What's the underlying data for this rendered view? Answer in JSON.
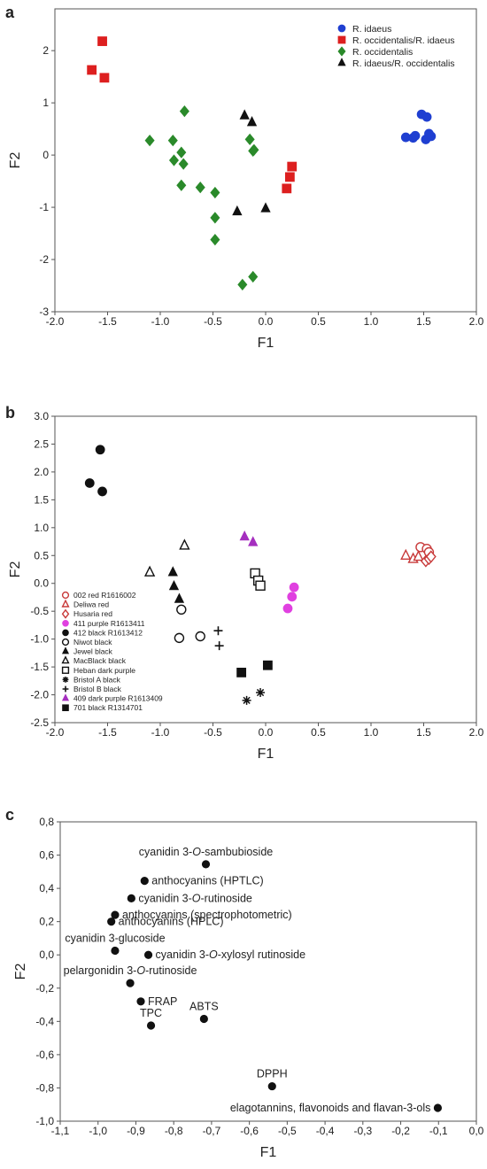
{
  "colors": {
    "blue": "#1f3fd1",
    "red": "#dd1f1f",
    "green": "#2a8a2a",
    "black": "#111111",
    "magenta": "#e040e0",
    "purple": "#a52fbf",
    "darkred": "#c83a3a"
  },
  "chart_data": [
    {
      "type": "scatter",
      "panel_label": "a",
      "xlabel": "F1",
      "ylabel": "F2",
      "xlim": [
        -2.0,
        2.0
      ],
      "ylim": [
        -3,
        2.8
      ],
      "xticks": [
        -2.0,
        -1.5,
        -1.0,
        -0.5,
        0.0,
        0.5,
        1.0,
        1.5,
        2.0
      ],
      "xtick_labels": [
        "-2.0",
        "-1.5",
        "-1.0",
        "-0.5",
        "0.0",
        "0.5",
        "1.0",
        "1.5",
        "2.0"
      ],
      "yticks": [
        -3,
        -2,
        -1,
        0,
        1,
        2
      ],
      "ytick_labels": [
        "-3",
        "-2",
        "-1",
        "0",
        "1",
        "2"
      ],
      "grid": false,
      "legend_position": "top-right",
      "series": [
        {
          "name": "R. idaeus",
          "marker": "circle",
          "color": "#1f3fd1",
          "points": [
            [
              1.33,
              0.34
            ],
            [
              1.4,
              0.33
            ],
            [
              1.42,
              0.37
            ],
            [
              1.48,
              0.78
            ],
            [
              1.53,
              0.73
            ],
            [
              1.52,
              0.3
            ],
            [
              1.57,
              0.36
            ],
            [
              1.55,
              0.41
            ]
          ]
        },
        {
          "name": "R. occidentalis/R. idaeus",
          "marker": "square",
          "color": "#dd1f1f",
          "points": [
            [
              -1.65,
              1.63
            ],
            [
              -1.55,
              2.18
            ],
            [
              -1.53,
              1.48
            ],
            [
              0.25,
              -0.22
            ],
            [
              0.23,
              -0.42
            ],
            [
              0.2,
              -0.64
            ]
          ]
        },
        {
          "name": "R. occidentalis",
          "marker": "diamond",
          "color": "#2a8a2a",
          "points": [
            [
              -1.1,
              0.28
            ],
            [
              -0.88,
              0.28
            ],
            [
              -0.77,
              0.84
            ],
            [
              -0.87,
              -0.1
            ],
            [
              -0.8,
              0.05
            ],
            [
              -0.78,
              -0.17
            ],
            [
              -0.8,
              -0.58
            ],
            [
              -0.62,
              -0.62
            ],
            [
              -0.48,
              -0.72
            ],
            [
              -0.48,
              -1.2
            ],
            [
              -0.48,
              -1.62
            ],
            [
              -0.22,
              -2.48
            ],
            [
              -0.12,
              -2.33
            ],
            [
              -0.15,
              0.3
            ],
            [
              -0.12,
              0.08
            ],
            [
              -0.11,
              0.1
            ]
          ]
        },
        {
          "name": "R. idaeus/R. occidentalis",
          "marker": "triangle",
          "color": "#111111",
          "points": [
            [
              -0.2,
              0.76
            ],
            [
              -0.13,
              0.63
            ],
            [
              -0.27,
              -1.08
            ],
            [
              0.0,
              -1.02
            ]
          ]
        }
      ]
    },
    {
      "type": "scatter",
      "panel_label": "b",
      "xlabel": "F1",
      "ylabel": "F2",
      "xlim": [
        -2.0,
        2.0
      ],
      "ylim": [
        -2.5,
        3.0
      ],
      "xticks": [
        -2.0,
        -1.5,
        -1.0,
        -0.5,
        0.0,
        0.5,
        1.0,
        1.5,
        2.0
      ],
      "xtick_labels": [
        "-2.0",
        "-1.5",
        "-1.0",
        "-0.5",
        "0.0",
        "0.5",
        "1.0",
        "1.5",
        "2.0"
      ],
      "yticks": [
        -2.5,
        -2.0,
        -1.5,
        -1.0,
        -0.5,
        0.0,
        0.5,
        1.0,
        1.5,
        2.0,
        2.5,
        3.0
      ],
      "ytick_labels": [
        "-2.5",
        "-2.0",
        "-1.5",
        "-1.0",
        "-0.5",
        "0.0",
        "0.5",
        "1.0",
        "1.5",
        "2.0",
        "2.5",
        "3.0"
      ],
      "grid": false,
      "legend_position": "bottom-left",
      "series": [
        {
          "name": "002 red R1616002",
          "marker": "circle-open",
          "color": "#c83a3a",
          "points": [
            [
              1.47,
              0.65
            ],
            [
              1.53,
              0.62
            ],
            [
              1.55,
              0.56
            ]
          ]
        },
        {
          "name": "Deliwa red",
          "marker": "triangle-open",
          "color": "#c83a3a",
          "points": [
            [
              1.33,
              0.5
            ],
            [
              1.4,
              0.44
            ],
            [
              1.45,
              0.48
            ]
          ]
        },
        {
          "name": "Husaria red",
          "marker": "diamond-open",
          "color": "#c83a3a",
          "points": [
            [
              1.52,
              0.4
            ],
            [
              1.55,
              0.44
            ],
            [
              1.57,
              0.48
            ]
          ]
        },
        {
          "name": "411 purple R1613411",
          "marker": "circle",
          "color": "#e040e0",
          "points": [
            [
              0.27,
              -0.07
            ],
            [
              0.25,
              -0.24
            ],
            [
              0.21,
              -0.45
            ]
          ]
        },
        {
          "name": "412 black R1613412",
          "marker": "circle",
          "color": "#111111",
          "points": [
            [
              -1.57,
              2.4
            ],
            [
              -1.67,
              1.8
            ],
            [
              -1.55,
              1.65
            ]
          ]
        },
        {
          "name": "Niwot black",
          "marker": "circle-open",
          "color": "#111111",
          "points": [
            [
              -0.8,
              -0.47
            ],
            [
              -0.82,
              -0.98
            ],
            [
              -0.62,
              -0.95
            ]
          ]
        },
        {
          "name": "Jewel black",
          "marker": "triangle",
          "color": "#111111",
          "points": [
            [
              -0.88,
              0.2
            ],
            [
              -0.87,
              -0.05
            ],
            [
              -0.82,
              -0.28
            ]
          ]
        },
        {
          "name": "MacBlack black",
          "marker": "triangle-open",
          "color": "#111111",
          "points": [
            [
              -1.1,
              0.2
            ],
            [
              -0.77,
              0.68
            ]
          ]
        },
        {
          "name": "Heban dark purple",
          "marker": "square-open",
          "color": "#111111",
          "points": [
            [
              -0.1,
              0.18
            ],
            [
              -0.07,
              0.05
            ],
            [
              -0.05,
              -0.04
            ]
          ]
        },
        {
          "name": "Bristol A black",
          "marker": "asterisk",
          "color": "#111111",
          "points": [
            [
              -0.18,
              -2.1
            ],
            [
              -0.05,
              -1.96
            ]
          ]
        },
        {
          "name": "Bristol B black",
          "marker": "plus",
          "color": "#111111",
          "points": [
            [
              -0.45,
              -0.85
            ],
            [
              -0.44,
              -1.12
            ]
          ]
        },
        {
          "name": "409 dark purple R1613409",
          "marker": "triangle",
          "color": "#a52fbf",
          "points": [
            [
              -0.2,
              0.84
            ],
            [
              -0.12,
              0.74
            ]
          ]
        },
        {
          "name": "701 black R1314701",
          "marker": "square",
          "color": "#111111",
          "points": [
            [
              -0.23,
              -1.6
            ],
            [
              0.02,
              -1.47
            ]
          ]
        }
      ]
    },
    {
      "type": "scatter",
      "panel_label": "c",
      "xlabel": "F1",
      "ylabel": "F2",
      "xlim": [
        -1.1,
        0.0
      ],
      "ylim": [
        -1.0,
        0.8
      ],
      "xticks": [
        -1.1,
        -1.0,
        -0.9,
        -0.8,
        -0.7,
        -0.6,
        -0.5,
        -0.4,
        -0.3,
        -0.2,
        -0.1,
        0.0
      ],
      "xtick_labels": [
        "-1,1",
        "-1,0",
        "-0,9",
        "-0,8",
        "-0,7",
        "-0,6",
        "-0,5",
        "-0,4",
        "-0,3",
        "-0,2",
        "-0,1",
        "0,0"
      ],
      "yticks": [
        -1.0,
        -0.8,
        -0.6,
        -0.4,
        -0.2,
        0.0,
        0.2,
        0.4,
        0.6,
        0.8
      ],
      "ytick_labels": [
        "-1,0",
        "-0,8",
        "-0,6",
        "-0,4",
        "-0,2",
        "0,0",
        "0,2",
        "0,4",
        "0,6",
        "0,8"
      ],
      "grid": false,
      "points": [
        {
          "x": -0.715,
          "y": 0.545,
          "label": "cyanidin 3-O-sambubioside",
          "anchor": "above",
          "rich": [
            [
              "cyanidin 3-",
              false
            ],
            [
              "O",
              true
            ],
            [
              "-sambubioside",
              false
            ]
          ]
        },
        {
          "x": -0.877,
          "y": 0.445,
          "label": "anthocyanins (HPTLC)",
          "anchor": "right",
          "rich": [
            [
              "anthocyanins (HPTLC)",
              false
            ]
          ]
        },
        {
          "x": -0.912,
          "y": 0.34,
          "label": "cyanidin 3-O-rutinoside",
          "anchor": "right",
          "rich": [
            [
              "cyanidin 3-",
              false
            ],
            [
              "O",
              true
            ],
            [
              "-rutinoside",
              false
            ]
          ]
        },
        {
          "x": -0.955,
          "y": 0.24,
          "label": "anthocyanins (spectrophotometric)",
          "anchor": "right",
          "rich": [
            [
              "anthocyanins (spectrophotometric)",
              false
            ]
          ]
        },
        {
          "x": -0.965,
          "y": 0.2,
          "label": "anthocyanins (HPLC)",
          "anchor": "right",
          "rich": [
            [
              "anthocyanins (HPLC)",
              false
            ]
          ]
        },
        {
          "x": -0.955,
          "y": 0.025,
          "label": "cyanidin 3-glucoside",
          "anchor": "above",
          "rich": [
            [
              "cyanidin 3-glucoside",
              false
            ]
          ]
        },
        {
          "x": -0.867,
          "y": 0.0,
          "label": "cyanidin 3-O-xylosyl rutinoside",
          "anchor": "right",
          "rich": [
            [
              "cyanidin 3-",
              false
            ],
            [
              "O",
              true
            ],
            [
              "-xylosyl rutinoside",
              false
            ]
          ]
        },
        {
          "x": -0.915,
          "y": -0.17,
          "label": "pelargonidin 3-O-rutinoside",
          "anchor": "above",
          "rich": [
            [
              "pelargonidin 3-",
              false
            ],
            [
              "O",
              true
            ],
            [
              "-rutinoside",
              false
            ]
          ]
        },
        {
          "x": -0.887,
          "y": -0.28,
          "label": "FRAP",
          "anchor": "right",
          "rich": [
            [
              "FRAP",
              false
            ]
          ]
        },
        {
          "x": -0.86,
          "y": -0.425,
          "label": "TPC",
          "anchor": "above",
          "rich": [
            [
              "TPC",
              false
            ]
          ]
        },
        {
          "x": -0.72,
          "y": -0.385,
          "label": "ABTS",
          "anchor": "above",
          "rich": [
            [
              "ABTS",
              false
            ]
          ]
        },
        {
          "x": -0.54,
          "y": -0.79,
          "label": "DPPH",
          "anchor": "above",
          "rich": [
            [
              "DPPH",
              false
            ]
          ]
        },
        {
          "x": -0.102,
          "y": -0.92,
          "label": "elagotannins, flavonoids and flavan-3-ols",
          "anchor": "left",
          "rich": [
            [
              "elagotannins, flavonoids and flavan-3-ols",
              false
            ]
          ]
        }
      ]
    }
  ]
}
